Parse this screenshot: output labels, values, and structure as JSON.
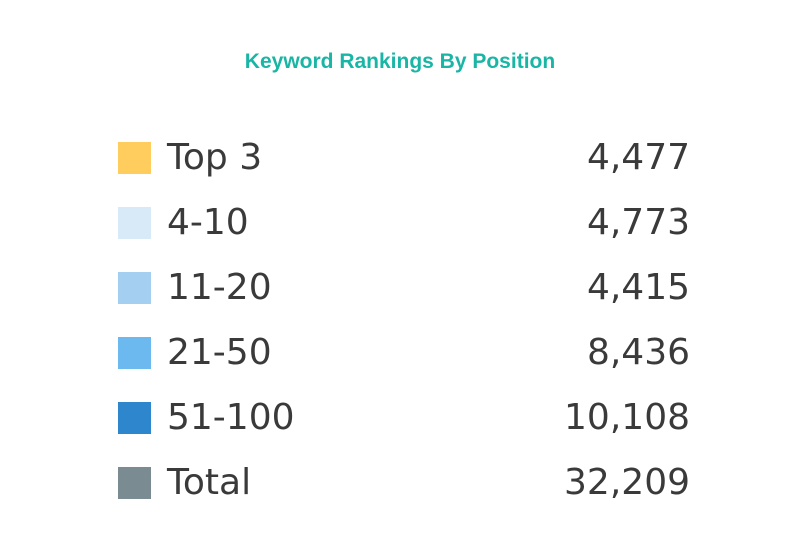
{
  "chart_data": {
    "type": "table",
    "title": "Keyword Rankings By Position",
    "categories": [
      "Top 3",
      "4-10",
      "11-20",
      "21-50",
      "51-100",
      "Total"
    ],
    "values": [
      4477,
      4773,
      4415,
      8436,
      10108,
      32209
    ],
    "rows": [
      {
        "label": "Top 3",
        "value": "4,477",
        "color": "#ffcd5e"
      },
      {
        "label": "4-10",
        "value": "4,773",
        "color": "#d8e9f7"
      },
      {
        "label": "11-20",
        "value": "4,415",
        "color": "#a5cff1"
      },
      {
        "label": "21-50",
        "value": "8,436",
        "color": "#6cb9f0"
      },
      {
        "label": "51-100",
        "value": "10,108",
        "color": "#2e86cc"
      },
      {
        "label": "Total",
        "value": "32,209",
        "color": "#7a8c91"
      }
    ]
  }
}
